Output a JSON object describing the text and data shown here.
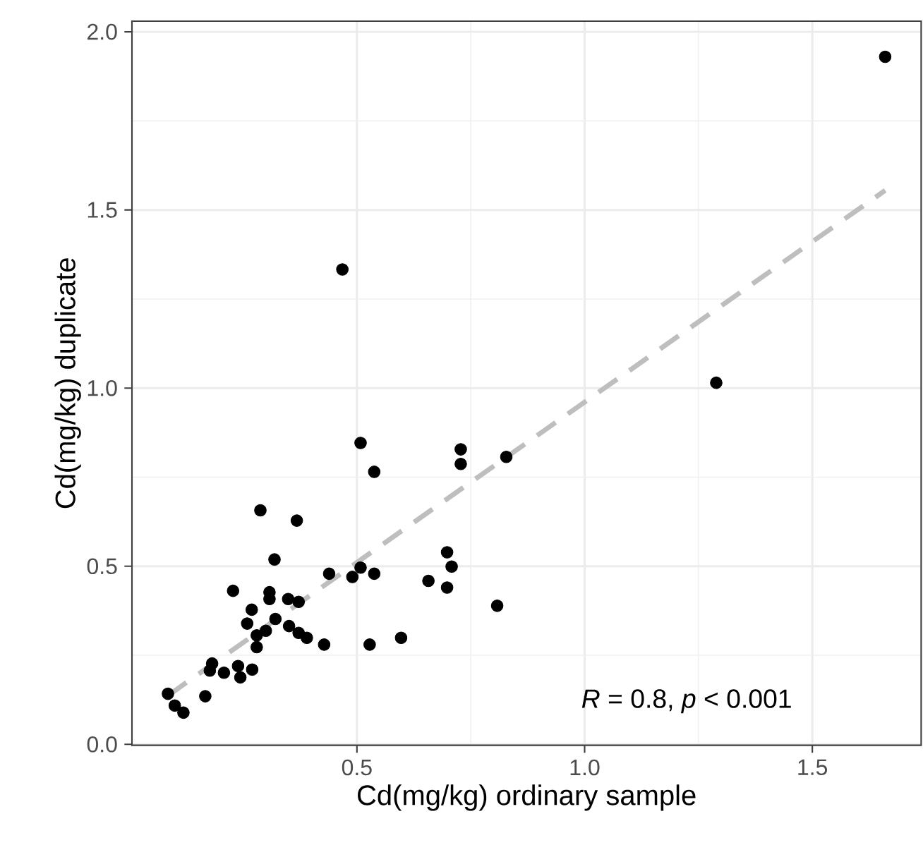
{
  "chart_data": {
    "type": "scatter",
    "xlabel": "Cd(mg/kg) ordinary sample",
    "ylabel": "Cd(mg/kg) duplicate",
    "xlim": [
      0.006,
      1.739
    ],
    "ylim": [
      -0.0025,
      2.03
    ],
    "xticks": [
      {
        "value": 0.5,
        "label": "0.5"
      },
      {
        "value": 1.0,
        "label": "1.0"
      },
      {
        "value": 1.5,
        "label": "1.5"
      }
    ],
    "yticks": [
      {
        "value": 0,
        "label": "0.0"
      },
      {
        "value": 0.5,
        "label": "0.5"
      },
      {
        "value": 1.0,
        "label": "1.0"
      },
      {
        "value": 1.5,
        "label": "1.5"
      },
      {
        "value": 2.0,
        "label": "2.0"
      }
    ],
    "grid": true,
    "annotations": [
      "*R* = 0.8, *p* < 0.001"
    ],
    "series": [
      {
        "color": "#000000",
        "marker": "circle",
        "x": [
          0.508,
          0.728,
          0.728,
          0.828,
          0.538,
          0.288,
          0.368,
          0.319,
          0.698,
          0.708,
          0.439,
          0.508,
          0.49,
          0.538,
          0.657,
          0.698,
          0.808,
          0.228,
          0.308,
          0.308,
          0.349,
          0.372,
          0.269,
          0.259,
          0.321,
          0.351,
          0.372,
          0.39,
          0.428,
          0.528,
          0.597,
          0.28,
          0.28,
          0.3,
          0.182,
          0.177,
          0.208,
          0.244,
          0.27,
          0.239,
          0.167,
          0.085,
          0.1,
          0.119,
          0.468,
          1.289,
          1.66
        ],
        "values": [
          0.846,
          0.828,
          0.787,
          0.807,
          0.765,
          0.657,
          0.628,
          0.519,
          0.539,
          0.499,
          0.479,
          0.496,
          0.47,
          0.479,
          0.459,
          0.44,
          0.389,
          0.431,
          0.427,
          0.408,
          0.408,
          0.4,
          0.378,
          0.339,
          0.352,
          0.332,
          0.313,
          0.299,
          0.28,
          0.28,
          0.299,
          0.306,
          0.273,
          0.319,
          0.227,
          0.207,
          0.201,
          0.188,
          0.21,
          0.22,
          0.135,
          0.142,
          0.109,
          0.089,
          1.333,
          1.015,
          1.93
        ]
      },
      {
        "type": "line",
        "color": "#bebebe",
        "line_style": "dashed",
        "marker": "none",
        "x": [
          0.085,
          1.66
        ],
        "values": [
          0.137,
          1.555
        ]
      }
    ]
  }
}
